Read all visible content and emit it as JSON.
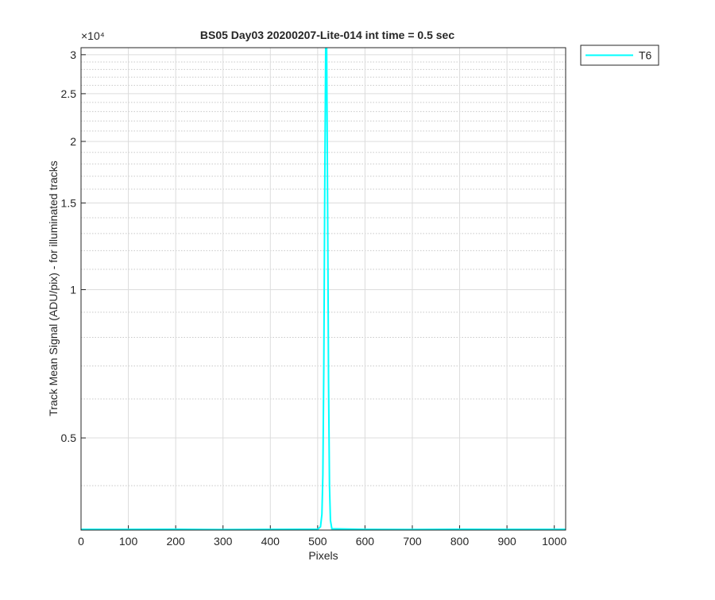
{
  "chart_data": {
    "type": "line",
    "title": "BS05 Day03 20200207-Lite-014 int time = 0.5 sec",
    "xlabel": "Pixels",
    "ylabel": "Track Mean Signal (ADU/pix) - for illuminated tracks",
    "y_multiplier": "×10⁴",
    "x": [
      0,
      100,
      200,
      300,
      400,
      500,
      506,
      509,
      511,
      513,
      515,
      517,
      519,
      521,
      523,
      525,
      527,
      530,
      600,
      700,
      800,
      900,
      1024
    ],
    "series": [
      {
        "name": "T6",
        "color": "#00ffff",
        "values": [
          3260,
          3260,
          3262,
          3258,
          3261,
          3262,
          3300,
          3500,
          4200,
          7000,
          16000,
          31000,
          31000,
          15000,
          6500,
          4000,
          3400,
          3270,
          3261,
          3259,
          3262,
          3260,
          3261
        ]
      }
    ],
    "xlim": [
      0,
      1024
    ],
    "xticks": [
      0,
      100,
      200,
      300,
      400,
      500,
      600,
      700,
      800,
      900,
      1000
    ],
    "ylim": [
      3250,
      31000
    ],
    "log_y": true,
    "yticks": [
      {
        "value": 5000,
        "label": "0.5"
      },
      {
        "value": 10000,
        "label": "1"
      },
      {
        "value": 15000,
        "label": "1.5"
      },
      {
        "value": 20000,
        "label": "2"
      },
      {
        "value": 25000,
        "label": "2.5"
      },
      {
        "value": 30000,
        "label": "3"
      }
    ],
    "minor_yticks": [
      4000,
      6000,
      7000,
      8000,
      9000,
      11000,
      12000,
      13000,
      14000,
      16000,
      17000,
      18000,
      19000,
      21000,
      22000,
      23000,
      24000,
      26000,
      27000,
      28000,
      29000
    ],
    "grid": true,
    "legend_position": "outside-right"
  }
}
